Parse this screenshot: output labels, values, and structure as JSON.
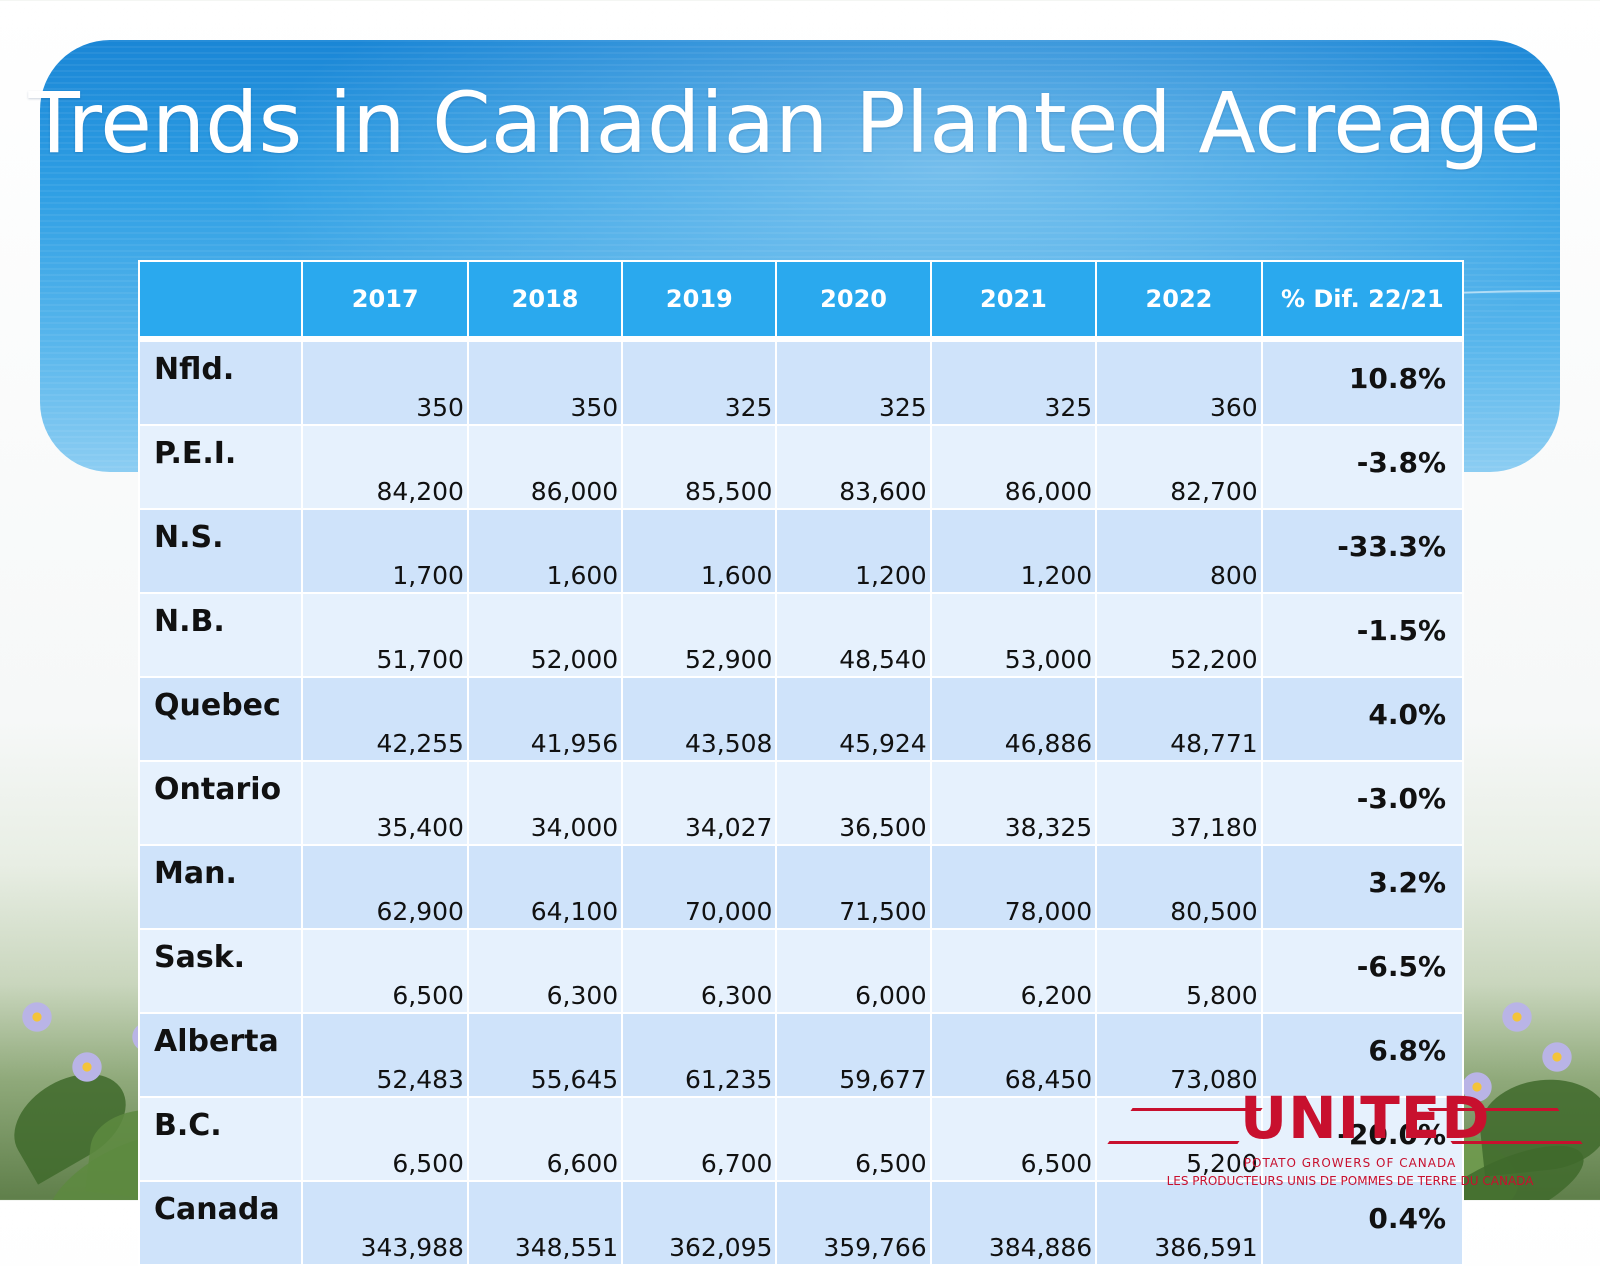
{
  "title": "Trends in Canadian Planted Acreage",
  "table": {
    "headers": [
      "",
      "2017",
      "2018",
      "2019",
      "2020",
      "2021",
      "2022",
      "% Dif. 22/21"
    ],
    "rows": [
      {
        "province": "Nfld.",
        "values": [
          "350",
          "350",
          "325",
          "325",
          "325",
          "360"
        ],
        "pct": "10.8%"
      },
      {
        "province": "P.E.I.",
        "values": [
          "84,200",
          "86,000",
          "85,500",
          "83,600",
          "86,000",
          "82,700"
        ],
        "pct": "-3.8%"
      },
      {
        "province": "N.S.",
        "values": [
          "1,700",
          "1,600",
          "1,600",
          "1,200",
          "1,200",
          "800"
        ],
        "pct": "-33.3%"
      },
      {
        "province": "N.B.",
        "values": [
          "51,700",
          "52,000",
          "52,900",
          "48,540",
          "53,000",
          "52,200"
        ],
        "pct": "-1.5%"
      },
      {
        "province": "Quebec",
        "values": [
          "42,255",
          "41,956",
          "43,508",
          "45,924",
          "46,886",
          "48,771"
        ],
        "pct": "4.0%"
      },
      {
        "province": "Ontario",
        "values": [
          "35,400",
          "34,000",
          "34,027",
          "36,500",
          "38,325",
          "37,180"
        ],
        "pct": "-3.0%"
      },
      {
        "province": "Man.",
        "values": [
          "62,900",
          "64,100",
          "70,000",
          "71,500",
          "78,000",
          "80,500"
        ],
        "pct": "3.2%"
      },
      {
        "province": "Sask.",
        "values": [
          "6,500",
          "6,300",
          "6,300",
          "6,000",
          "6,200",
          "5,800"
        ],
        "pct": "-6.5%"
      },
      {
        "province": "Alberta",
        "values": [
          "52,483",
          "55,645",
          "61,235",
          "59,677",
          "68,450",
          "73,080"
        ],
        "pct": "6.8%"
      },
      {
        "province": "B.C.",
        "values": [
          "6,500",
          "6,600",
          "6,700",
          "6,500",
          "6,500",
          "5,200"
        ],
        "pct": "-20.0%"
      },
      {
        "province": "Canada",
        "values": [
          "343,988",
          "348,551",
          "362,095",
          "359,766",
          "384,886",
          "386,591"
        ],
        "pct": "0.4%"
      }
    ]
  },
  "logo": {
    "word": "UNITED",
    "line1": "POTATO GROWERS OF CANADA",
    "line2": "LES PRODUCTEURS UNIS DE POMMES DE TERRE DU CANADA"
  },
  "colors": {
    "banner": "#2f9fe4",
    "header_cell": "#2aa9ee",
    "row_odd": "#cfe3fa",
    "row_even": "#e6f1fd",
    "logo_red": "#c8102e"
  },
  "icons": {
    "background": "potato-blossom-field-photo",
    "logo": "united-potato-growers-logo"
  }
}
